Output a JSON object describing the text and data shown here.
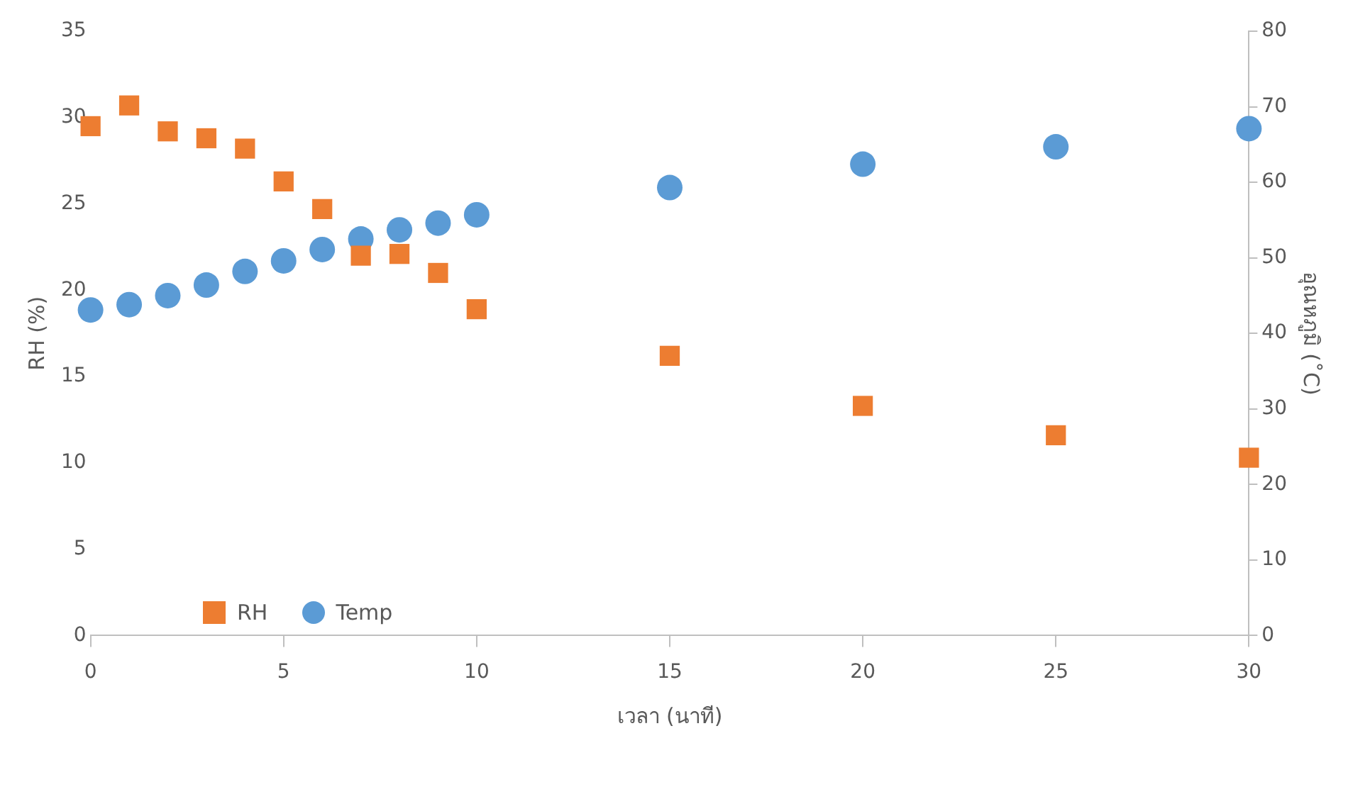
{
  "chart_data": {
    "type": "scatter",
    "xlabel": "เวลา (นาที)",
    "ylabel": "RH (%)",
    "y2label": "อุณหภูมิ (˚C)",
    "x": [
      0,
      1,
      2,
      3,
      4,
      5,
      6,
      7,
      8,
      9,
      10,
      15,
      20,
      25,
      30
    ],
    "series": [
      {
        "name": "RH",
        "color": "#ed7d31",
        "marker": "square",
        "values": [
          29.5,
          30.7,
          29.2,
          28.8,
          28.2,
          26.3,
          24.7,
          22.0,
          22.1,
          21.0,
          18.9,
          16.2,
          13.3,
          11.6,
          10.3
        ]
      },
      {
        "name": "Temp",
        "color": "#5b9bd5",
        "marker": "circle",
        "axis": "y2",
        "values": [
          43.1,
          43.8,
          45.0,
          46.4,
          48.2,
          49.6,
          51.1,
          52.5,
          53.7,
          54.6,
          55.7,
          59.3,
          62.4,
          64.7,
          67.1
        ]
      }
    ],
    "xlim": [
      0,
      30
    ],
    "xticks": [
      0,
      5,
      10,
      15,
      20,
      25,
      30
    ],
    "ylim": [
      0,
      35
    ],
    "yticks": [
      0,
      5,
      10,
      15,
      20,
      25,
      30,
      35
    ],
    "y2lim": [
      0,
      80
    ],
    "y2ticks": [
      0,
      10,
      20,
      30,
      40,
      50,
      60,
      70,
      80
    ],
    "grid": false,
    "legend": "bottom left"
  }
}
